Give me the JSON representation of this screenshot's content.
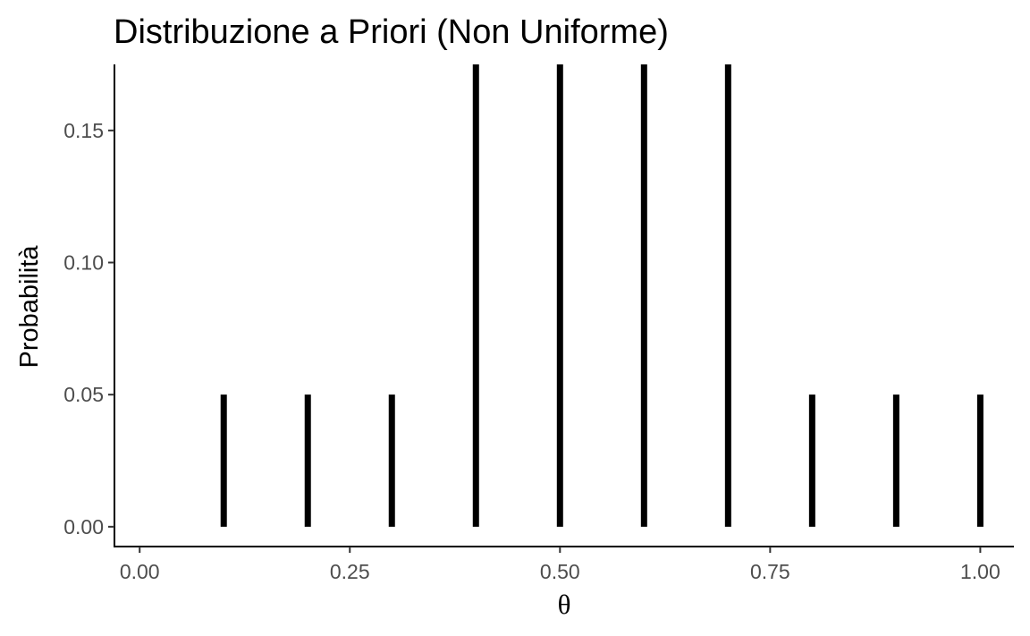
{
  "chart_data": {
    "type": "bar",
    "title": "Distribuzione a Priori (Non Uniforme)",
    "xlabel": "θ",
    "ylabel": "Probabilità",
    "xlim": [
      -0.03,
      1.04
    ],
    "ylim": [
      -0.0075,
      0.175
    ],
    "x_ticks": [
      "0.00",
      "0.25",
      "0.50",
      "0.75",
      "1.00"
    ],
    "y_ticks": [
      "0.00",
      "0.05",
      "0.10",
      "0.15"
    ],
    "grid": false,
    "legend": "none",
    "bar_color": "#000000",
    "x": [
      0.1,
      0.2,
      0.3,
      0.4,
      0.5,
      0.6,
      0.7,
      0.8,
      0.9,
      1.0
    ],
    "values": [
      0.05,
      0.05,
      0.05,
      0.175,
      0.175,
      0.175,
      0.175,
      0.05,
      0.05,
      0.05
    ]
  }
}
